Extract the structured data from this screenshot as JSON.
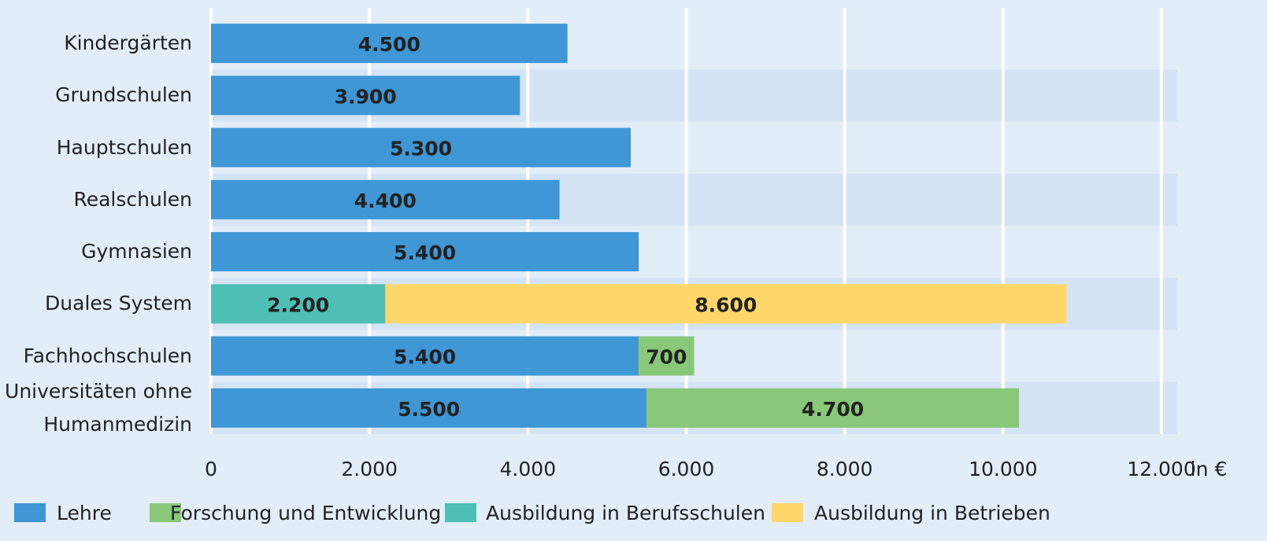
{
  "chart_data": {
    "type": "stacked-bar-horizontal",
    "categories": [
      "Kindergärten",
      "Grundschulen",
      "Hauptschulen",
      "Realschulen",
      "Gymnasien",
      "Duales System",
      "Fachhochschulen",
      "Universitäten ohne\nHumanmedizin"
    ],
    "series": [
      {
        "name": "Lehre",
        "color": "#3f97d5",
        "values": [
          4500,
          3900,
          5300,
          4400,
          5400,
          null,
          5400,
          5500
        ],
        "value_labels": [
          "4.500",
          "3.900",
          "5.300",
          "4.400",
          "5.400",
          null,
          "5.400",
          "5.500"
        ]
      },
      {
        "name": "Forschung und Entwicklung",
        "color": "#88c878",
        "values": [
          null,
          null,
          null,
          null,
          null,
          null,
          700,
          4700
        ],
        "value_labels": [
          null,
          null,
          null,
          null,
          null,
          null,
          "700",
          "4.700"
        ]
      },
      {
        "name": "Ausbildung in Berufsschulen",
        "color": "#4dbfb4",
        "values": [
          null,
          null,
          null,
          null,
          null,
          2200,
          null,
          null
        ],
        "value_labels": [
          null,
          null,
          null,
          null,
          null,
          "2.200",
          null,
          null
        ]
      },
      {
        "name": "Ausbildung in Betrieben",
        "color": "#fdd76a",
        "values": [
          null,
          null,
          null,
          null,
          null,
          8600,
          null,
          null
        ],
        "value_labels": [
          null,
          null,
          null,
          null,
          null,
          "8.600",
          null,
          null
        ]
      }
    ],
    "x_label": "in €",
    "xlim": [
      0,
      12200
    ],
    "xticks": [
      0,
      {
        "value": 2000,
        "label": "2.000"
      },
      {
        "value": 4000,
        "label": "4.000"
      },
      {
        "value": 6000,
        "label": "6.000"
      },
      {
        "value": 8000,
        "label": "8.000"
      },
      {
        "value": 10000,
        "label": "10.000"
      },
      {
        "value": 12000,
        "label": "12.000"
      }
    ],
    "grid": true,
    "legend": "bottom"
  }
}
